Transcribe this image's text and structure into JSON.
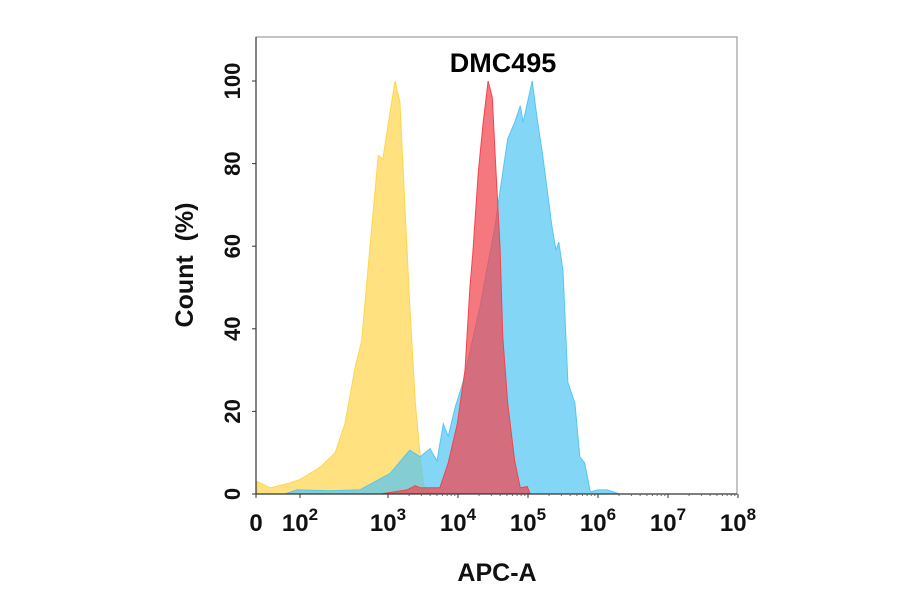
{
  "chart_data": {
    "type": "area",
    "title": "DMC495",
    "xlabel": "APC-A",
    "ylabel": "Count  (%)",
    "x_scale": "biexponential (log10 decades)",
    "xlim_log10": [
      0,
      8
    ],
    "ylim": [
      0,
      110
    ],
    "grid": false,
    "legend": "none",
    "x_ticks": [
      {
        "value_log10": 0,
        "base": "0",
        "exp": ""
      },
      {
        "value_log10": 2,
        "base": "10",
        "exp": "2"
      },
      {
        "value_log10": 3,
        "base": "10",
        "exp": "3"
      },
      {
        "value_log10": 4,
        "base": "10",
        "exp": "4"
      },
      {
        "value_log10": 5,
        "base": "10",
        "exp": "5"
      },
      {
        "value_log10": 6,
        "base": "10",
        "exp": "6"
      },
      {
        "value_log10": 7,
        "base": "10",
        "exp": "7"
      },
      {
        "value_log10": 8,
        "base": "10",
        "exp": "8"
      }
    ],
    "y_ticks": [
      "0",
      "20",
      "40",
      "60",
      "80",
      "100"
    ],
    "series": [
      {
        "color": "#FFD54F",
        "x_log10": [
          0.05,
          0.64,
          1.55,
          2.0,
          2.23,
          2.4,
          2.51,
          2.63,
          2.7,
          2.77,
          2.89,
          2.94,
          3.1,
          3.17,
          3.24,
          3.31,
          3.39,
          3.47,
          3.51,
          3.6,
          3.74
        ],
        "y": [
          3,
          1.5,
          2.7,
          3.5,
          6.5,
          10,
          17,
          31,
          37,
          54,
          82,
          81,
          100,
          95,
          70,
          46,
          22,
          7.5,
          2,
          0.5,
          0
        ]
      },
      {
        "color": "#55C6F2",
        "x_log10": [
          1.32,
          1.86,
          2.34,
          2.68,
          3.03,
          3.31,
          3.46,
          3.6,
          3.7,
          3.79,
          3.86,
          3.96,
          4.07,
          4.31,
          4.53,
          4.64,
          4.71,
          4.81,
          4.89,
          4.93,
          5.06,
          5.13,
          5.21,
          5.34,
          5.4,
          5.44,
          5.5,
          5.57,
          5.67,
          5.74,
          5.81,
          5.89,
          6.0,
          6.13,
          6.31
        ],
        "y": [
          0,
          1,
          0.8,
          1,
          5,
          10.6,
          9,
          11,
          8,
          17,
          14,
          21,
          27,
          45,
          65,
          78,
          86,
          90,
          94,
          90,
          100,
          91,
          82,
          65,
          59,
          61,
          54,
          27,
          22,
          9,
          7.5,
          0.5,
          1,
          1,
          0
        ]
      },
      {
        "color": "#F2444E",
        "x_log10": [
          2.91,
          3.27,
          3.39,
          3.46,
          3.74,
          3.86,
          3.99,
          4.1,
          4.17,
          4.21,
          4.29,
          4.36,
          4.43,
          4.49,
          4.54,
          4.6,
          4.64,
          4.71,
          4.81,
          4.89,
          4.99,
          5.03
        ],
        "y": [
          0,
          1,
          2,
          1.5,
          1.5,
          7.5,
          17,
          30,
          50,
          58,
          78,
          90,
          100,
          96,
          79,
          60,
          38,
          22,
          8,
          1.5,
          1.8,
          0
        ]
      }
    ]
  }
}
